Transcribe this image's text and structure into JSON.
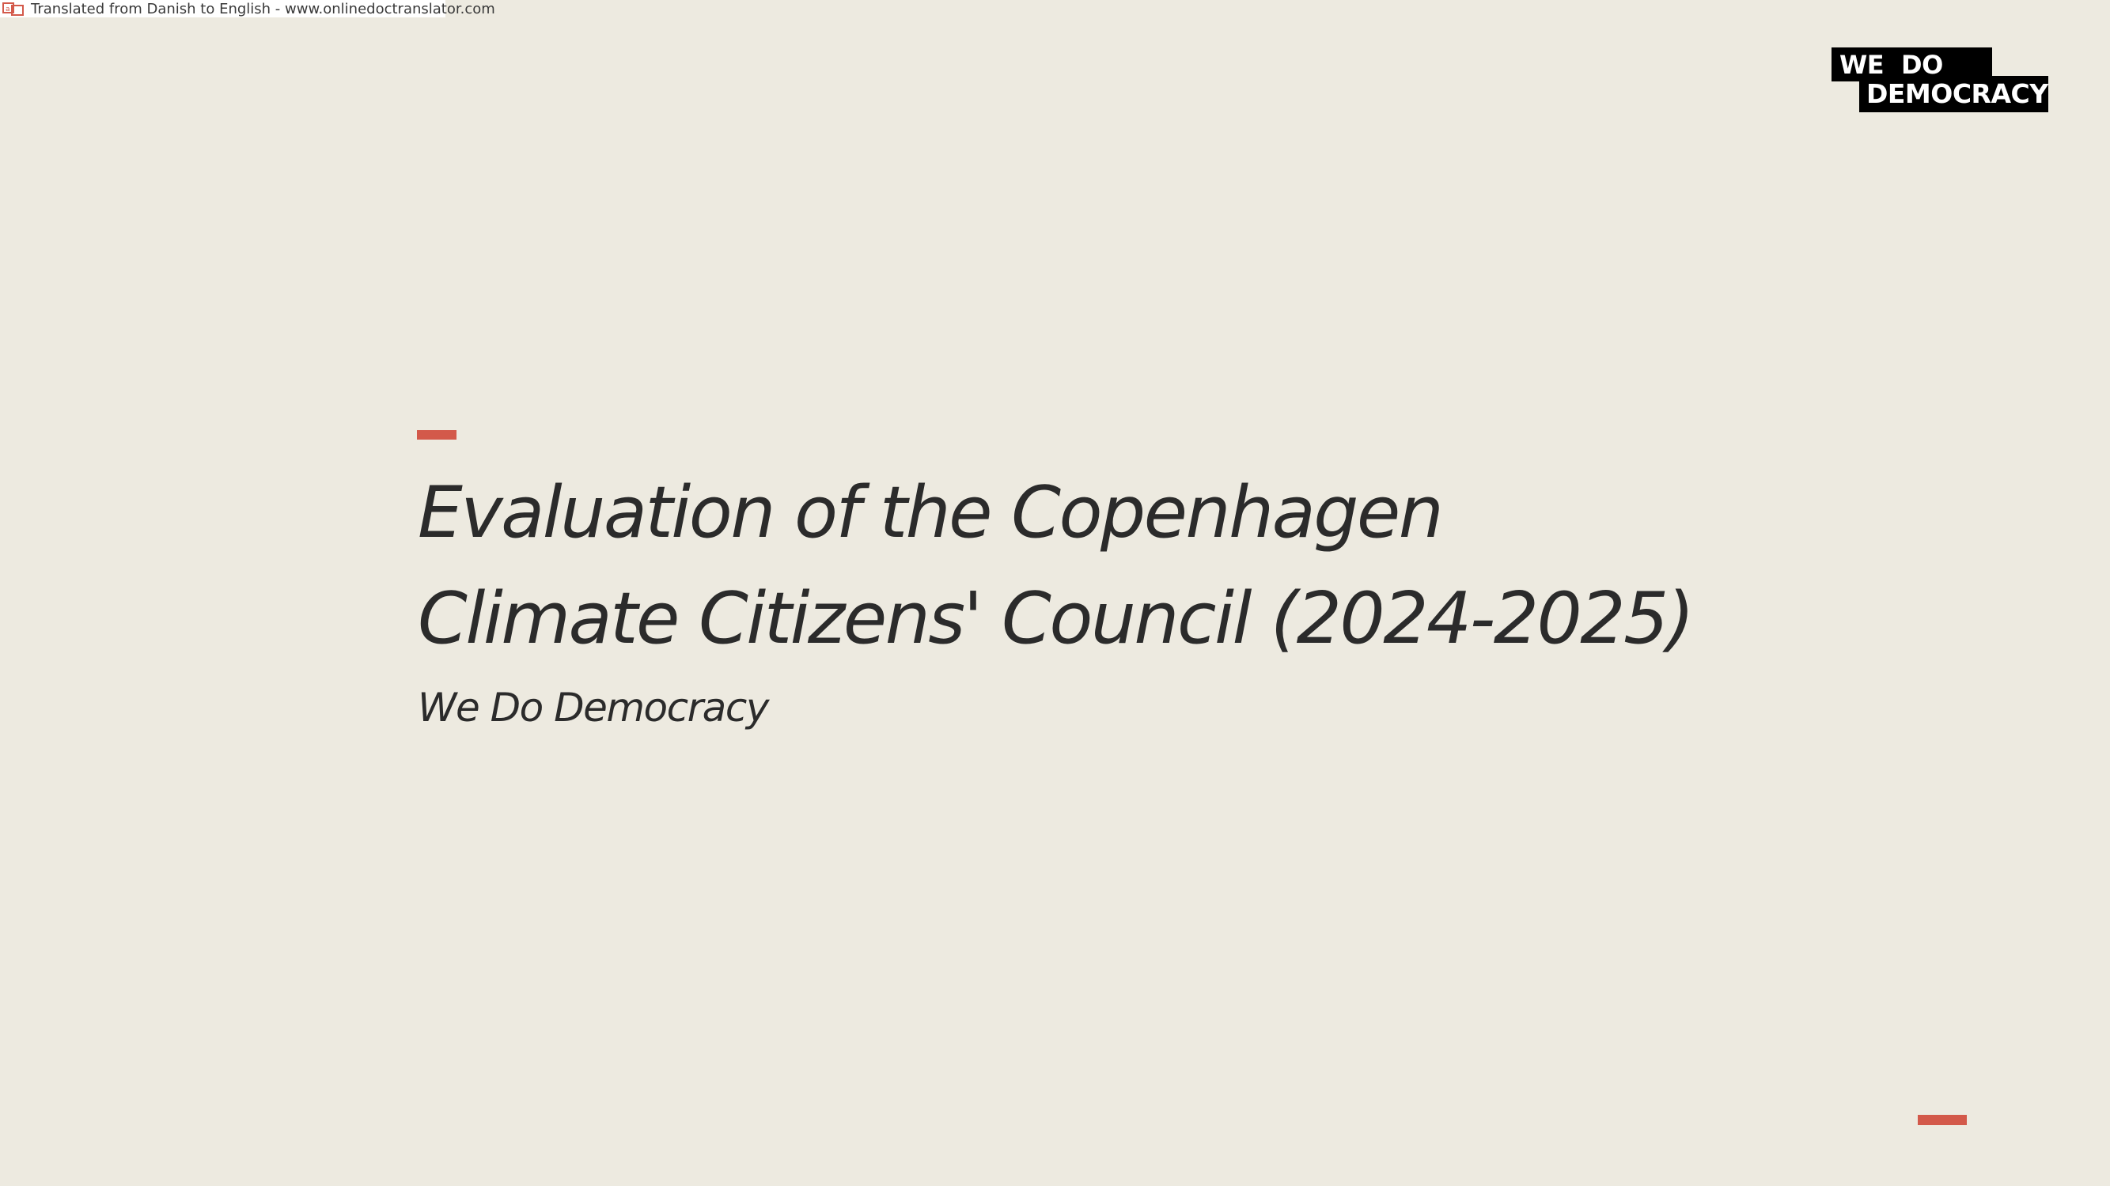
{
  "banner": {
    "text": "Translated from Danish to English - www.onlinedoctranslator.com",
    "icon": "translate-icon"
  },
  "logo": {
    "line1_word1": "WE",
    "line1_word2": "DO",
    "line2": "DEMOCRACY"
  },
  "slide": {
    "title_line1": "Evaluation of the Copenhagen",
    "title_line2": "Climate Citizens' Council (2024-2025)",
    "subtitle": "We Do Democracy"
  },
  "colors": {
    "background": "#edeae0",
    "accent": "#d3594a",
    "text": "#2b2b2b",
    "logo": "#000000"
  }
}
